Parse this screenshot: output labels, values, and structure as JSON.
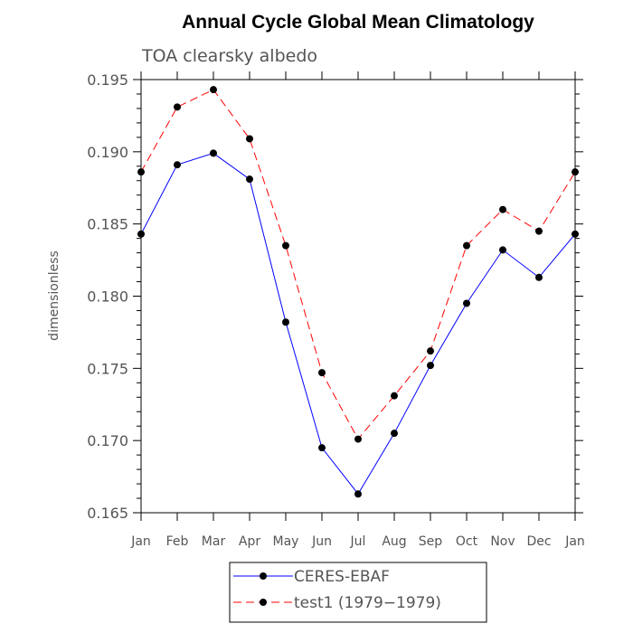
{
  "chart_data": {
    "type": "line",
    "title": "Annual Cycle Global Mean Climatology",
    "subtitle": "TOA clearsky albedo",
    "xlabel": "",
    "ylabel": "dimensionless",
    "categories": [
      "Jan",
      "Feb",
      "Mar",
      "Apr",
      "May",
      "Jun",
      "Jul",
      "Aug",
      "Sep",
      "Oct",
      "Nov",
      "Dec",
      "Jan"
    ],
    "ylim": [
      0.165,
      0.195
    ],
    "yticks": [
      "0.165",
      "0.170",
      "0.175",
      "0.180",
      "0.185",
      "0.190",
      "0.195"
    ],
    "grid": false,
    "legend_position": "bottom-center",
    "series": [
      {
        "name": "CERES-EBAF",
        "color": "#0000ff",
        "dash": "solid",
        "marker": "filled-circle",
        "values": [
          0.1843,
          0.1891,
          0.1899,
          0.1881,
          0.1782,
          0.1695,
          0.1663,
          0.1705,
          0.1752,
          0.1795,
          0.1832,
          0.1813,
          0.1843
        ]
      },
      {
        "name": "test1 (1979−1979)",
        "color": "#ff0000",
        "dash": "dashed",
        "marker": "filled-circle",
        "values": [
          0.1886,
          0.1931,
          0.1943,
          0.1909,
          0.1835,
          0.1747,
          0.1701,
          0.1731,
          0.1762,
          0.1835,
          0.186,
          0.1845,
          0.1886
        ]
      }
    ]
  }
}
